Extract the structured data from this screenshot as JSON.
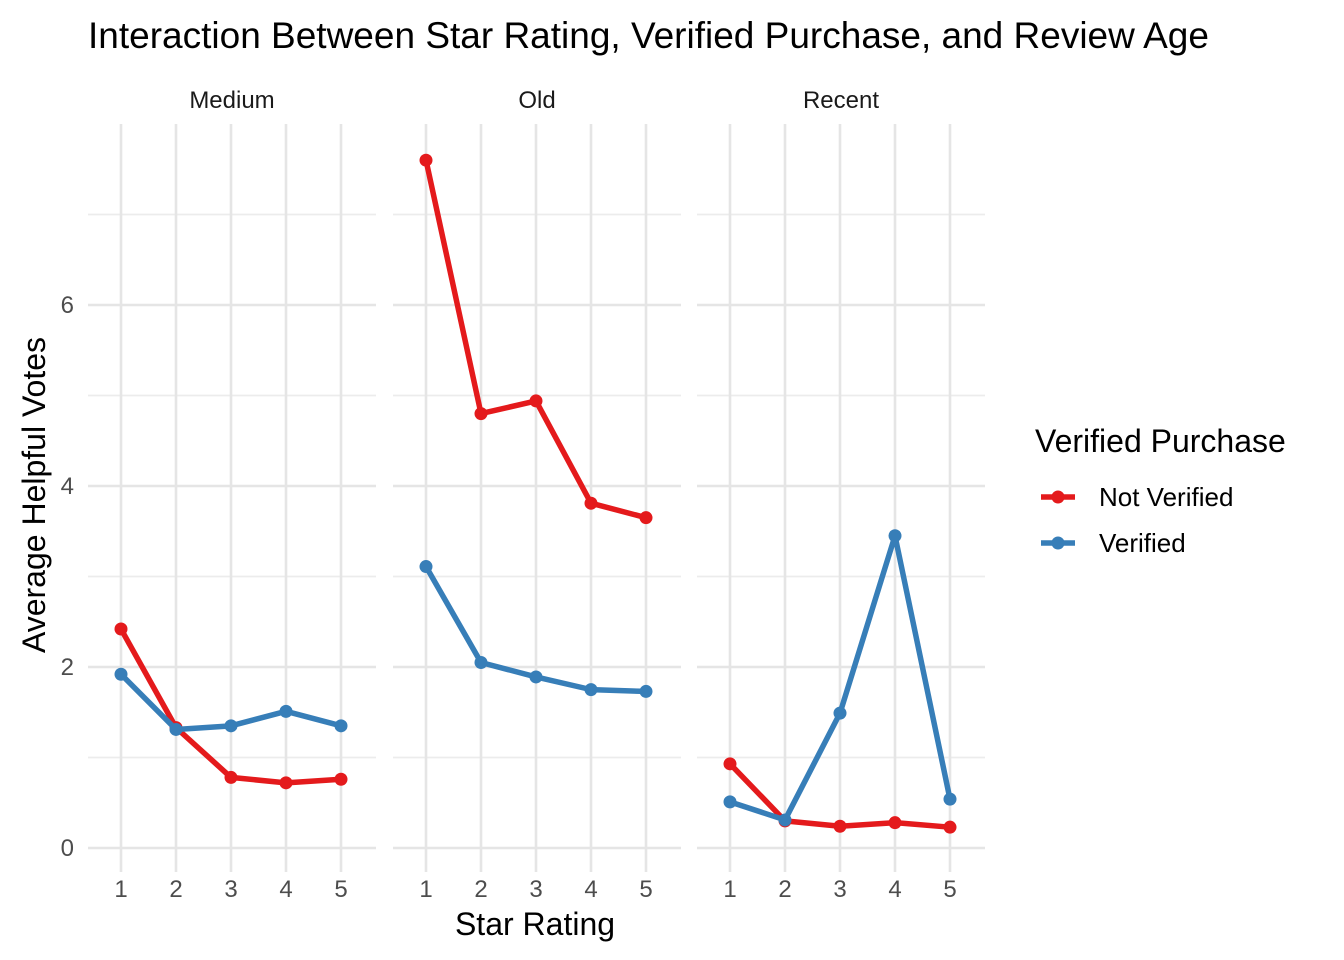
{
  "chart_data": {
    "type": "line",
    "title": "Interaction Between Star Rating, Verified Purchase, and Review Age",
    "xlabel": "Star Rating",
    "ylabel": "Average Helpful Votes",
    "x": [
      1,
      2,
      3,
      4,
      5
    ],
    "x_ticks": [
      "1",
      "2",
      "3",
      "4",
      "5"
    ],
    "y_ticks": [
      "0",
      "2",
      "4",
      "6"
    ],
    "ylim": [
      -0.15,
      7.8
    ],
    "grid": true,
    "legend": {
      "title": "Verified Purchase",
      "position": "right",
      "entries": [
        "Not Verified",
        "Verified"
      ]
    },
    "colors": {
      "Not Verified": "#e41a1c",
      "Verified": "#377eb8"
    },
    "panels": [
      {
        "label": "Medium",
        "series": [
          {
            "name": "Not Verified",
            "values": [
              2.42,
              1.33,
              0.78,
              0.72,
              0.76
            ]
          },
          {
            "name": "Verified",
            "values": [
              1.92,
              1.31,
              1.35,
              1.51,
              1.35
            ]
          }
        ]
      },
      {
        "label": "Old",
        "series": [
          {
            "name": "Not Verified",
            "values": [
              7.6,
              4.8,
              4.94,
              3.81,
              3.65
            ]
          },
          {
            "name": "Verified",
            "values": [
              3.11,
              2.05,
              1.89,
              1.75,
              1.73
            ]
          }
        ]
      },
      {
        "label": "Recent",
        "series": [
          {
            "name": "Not Verified",
            "values": [
              0.93,
              0.3,
              0.24,
              0.28,
              0.23
            ]
          },
          {
            "name": "Verified",
            "values": [
              0.51,
              0.31,
              1.49,
              3.45,
              0.54
            ]
          }
        ]
      }
    ]
  }
}
